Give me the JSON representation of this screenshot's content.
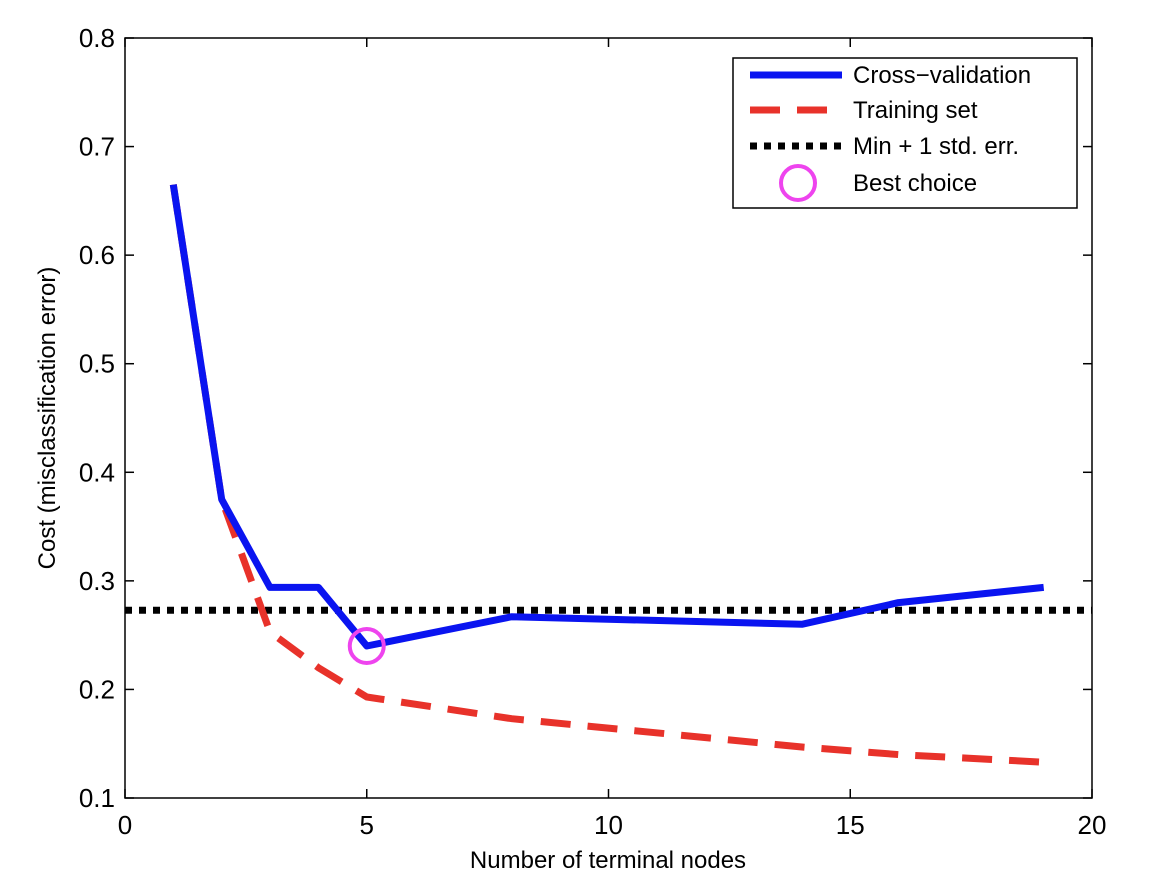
{
  "chart_data": {
    "type": "line",
    "title": "",
    "xlabel": "Number of terminal nodes",
    "ylabel": "Cost (misclassification error)",
    "xlim": [
      0,
      20
    ],
    "ylim": [
      0.1,
      0.8
    ],
    "xticks": [
      0,
      5,
      10,
      15,
      20
    ],
    "yticks": [
      0.1,
      0.2,
      0.3,
      0.4,
      0.5,
      0.6,
      0.7,
      0.8
    ],
    "grid": false,
    "legend_position": "top-right",
    "series": [
      {
        "name": "Cross−validation",
        "style": "solid",
        "color": "#0a14f0",
        "x": [
          1,
          2,
          3,
          4,
          5,
          8,
          14,
          16,
          19
        ],
        "y": [
          0.665,
          0.375,
          0.294,
          0.294,
          0.24,
          0.267,
          0.26,
          0.28,
          0.294
        ]
      },
      {
        "name": "Training set",
        "style": "dashed",
        "color": "#e8322a",
        "x": [
          1,
          2,
          3,
          4,
          5,
          8,
          14,
          16,
          19
        ],
        "y": [
          0.665,
          0.375,
          0.253,
          0.22,
          0.193,
          0.173,
          0.147,
          0.14,
          0.133
        ]
      },
      {
        "name": "Min + 1 std. err.",
        "style": "dotted",
        "color": "#000000",
        "x": [
          0,
          20
        ],
        "y": [
          0.273,
          0.273
        ]
      },
      {
        "name": "Best choice",
        "style": "marker-circle",
        "color": "#ee44ee",
        "x": [
          5
        ],
        "y": [
          0.24
        ]
      }
    ]
  }
}
